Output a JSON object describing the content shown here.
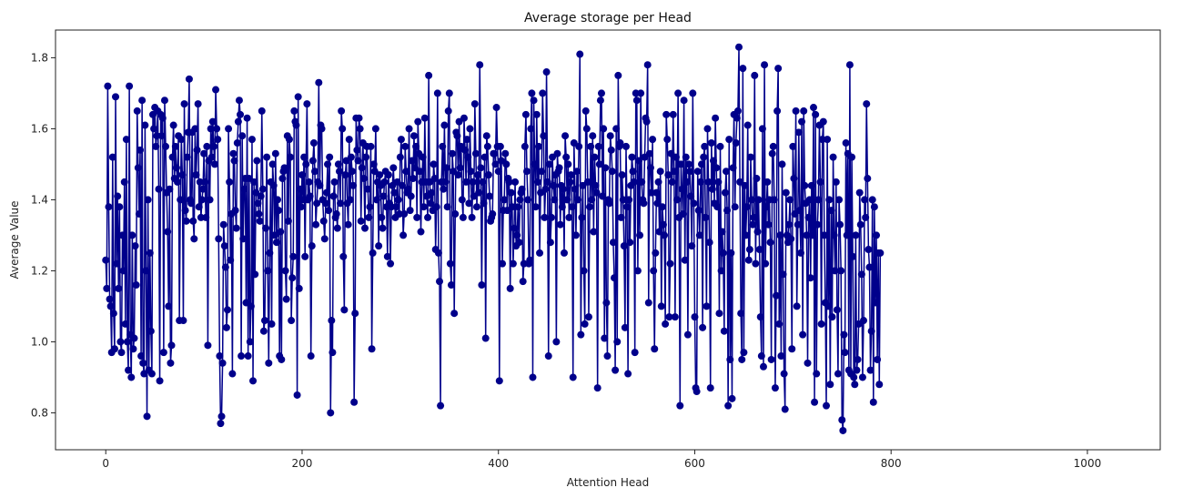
{
  "chart_data": {
    "type": "line",
    "title": "Average storage per Head",
    "xlabel": "Attention Head",
    "ylabel": "Average Value",
    "xlim": [
      -51.2,
      1074.2
    ],
    "ylim": [
      0.696,
      1.878
    ],
    "xticks": [
      0,
      200,
      400,
      600,
      800,
      1000
    ],
    "yticks": [
      0.8,
      1.0,
      1.2,
      1.4,
      1.6,
      1.8
    ],
    "grid": false,
    "legend": "none",
    "series": [
      {
        "color": "#00008b",
        "marker": "circle",
        "x_start": 0,
        "x_step": 1,
        "values": [
          1.23,
          1.15,
          1.72,
          1.38,
          1.12,
          1.1,
          0.97,
          1.52,
          1.08,
          0.98,
          1.69,
          1.22,
          1.41,
          1.15,
          1.38,
          1.0,
          0.97,
          1.3,
          1.2,
          1.45,
          1.05,
          1.57,
          1.0,
          0.92,
          1.72,
          1.02,
          0.9,
          1.3,
          0.98,
          1.01,
          1.27,
          1.16,
          1.65,
          1.49,
          1.36,
          1.54,
          0.96,
          1.68,
          0.94,
          0.91,
          1.61,
          1.2,
          0.79,
          1.4,
          0.92,
          1.25,
          1.03,
          0.91,
          1.64,
          1.6,
          1.66,
          1.55,
          1.58,
          1.65,
          1.43,
          0.89,
          1.64,
          1.58,
          1.63,
          0.97,
          1.68,
          1.55,
          1.42,
          1.31,
          1.1,
          1.43,
          0.94,
          0.99,
          1.52,
          1.61,
          1.46,
          1.55,
          1.49,
          1.45,
          1.58,
          1.06,
          1.4,
          1.57,
          1.47,
          1.06,
          1.67,
          1.37,
          1.34,
          1.52,
          1.59,
          1.74,
          1.4,
          1.39,
          1.59,
          1.34,
          1.29,
          1.6,
          1.47,
          1.54,
          1.67,
          1.38,
          1.45,
          1.35,
          1.4,
          1.43,
          1.53,
          1.45,
          1.35,
          1.55,
          0.99,
          1.51,
          1.4,
          1.6,
          1.52,
          1.62,
          1.55,
          1.5,
          1.71,
          1.6,
          1.57,
          1.29,
          0.96,
          0.77,
          0.79,
          0.94,
          1.33,
          1.27,
          1.21,
          1.04,
          1.09,
          1.6,
          1.45,
          1.23,
          1.36,
          0.91,
          1.53,
          1.51,
          1.37,
          1.32,
          1.56,
          1.62,
          1.68,
          1.64,
          0.96,
          1.58,
          1.29,
          1.43,
          1.46,
          1.11,
          1.63,
          0.96,
          1.46,
          1.0,
          1.1,
          1.57,
          0.89,
          1.45,
          1.19,
          1.42,
          1.51,
          1.39,
          1.36,
          1.34,
          1.41,
          1.65,
          1.43,
          1.03,
          1.06,
          1.32,
          1.52,
          1.2,
          0.94,
          1.25,
          1.45,
          1.05,
          1.5,
          1.44,
          1.3,
          1.53,
          1.28,
          1.4,
          1.37,
          0.96,
          1.31,
          0.95,
          1.46,
          1.48,
          1.49,
          1.2,
          1.12,
          1.58,
          1.34,
          1.57,
          1.52,
          1.06,
          1.18,
          1.24,
          1.65,
          1.62,
          1.61,
          0.85,
          1.69,
          1.15,
          1.43,
          1.38,
          1.47,
          1.4,
          1.52,
          1.24,
          1.5,
          1.67,
          1.4,
          1.45,
          1.41,
          0.96,
          1.27,
          1.51,
          1.56,
          1.48,
          1.33,
          1.39,
          1.45,
          1.73,
          1.44,
          1.61,
          1.6,
          1.4,
          1.34,
          1.29,
          1.39,
          1.42,
          1.5,
          1.37,
          1.52,
          0.8,
          1.06,
          0.97,
          1.41,
          1.45,
          1.35,
          1.36,
          1.32,
          1.5,
          1.48,
          1.39,
          1.65,
          1.6,
          1.24,
          1.09,
          1.47,
          1.51,
          1.39,
          1.33,
          1.57,
          1.4,
          1.52,
          1.48,
          1.44,
          0.83,
          1.08,
          1.63,
          1.54,
          1.51,
          1.63,
          1.6,
          1.34,
          1.49,
          1.56,
          1.46,
          1.32,
          1.52,
          1.55,
          1.43,
          1.35,
          1.38,
          1.55,
          0.98,
          1.25,
          1.5,
          1.48,
          1.6,
          1.4,
          1.45,
          1.27,
          1.47,
          1.44,
          1.35,
          1.32,
          1.41,
          1.45,
          1.48,
          1.38,
          1.24,
          1.47,
          1.39,
          1.22,
          1.38,
          1.44,
          1.49,
          1.42,
          1.35,
          1.38,
          1.45,
          1.4,
          1.36,
          1.52,
          1.57,
          1.44,
          1.3,
          1.36,
          1.55,
          1.48,
          1.42,
          1.43,
          1.6,
          1.37,
          1.41,
          1.51,
          1.46,
          1.58,
          1.49,
          1.55,
          1.35,
          1.62,
          1.53,
          1.48,
          1.31,
          1.45,
          1.52,
          1.38,
          1.63,
          1.45,
          1.41,
          1.35,
          1.75,
          1.45,
          1.39,
          1.42,
          1.37,
          1.5,
          1.46,
          1.26,
          1.38,
          1.7,
          1.25,
          1.17,
          0.82,
          1.45,
          1.55,
          1.43,
          1.61,
          1.45,
          1.49,
          1.38,
          1.65,
          1.7,
          1.22,
          1.16,
          1.53,
          1.48,
          1.08,
          1.36,
          1.59,
          1.58,
          1.47,
          1.62,
          1.49,
          1.55,
          1.4,
          1.35,
          1.63,
          1.54,
          1.45,
          1.57,
          1.52,
          1.39,
          1.6,
          1.48,
          1.35,
          1.45,
          1.41,
          1.67,
          1.53,
          1.38,
          1.47,
          1.42,
          1.78,
          1.49,
          1.16,
          1.45,
          1.39,
          1.52,
          1.01,
          1.58,
          1.55,
          1.47,
          1.41,
          1.34,
          1.35,
          1.36,
          1.53,
          1.53,
          1.5,
          1.66,
          1.55,
          1.48,
          0.89,
          1.55,
          1.51,
          1.22,
          1.37,
          1.4,
          1.53,
          1.5,
          1.37,
          1.46,
          1.45,
          1.15,
          1.42,
          1.38,
          1.22,
          1.32,
          1.45,
          1.27,
          1.3,
          1.38,
          1.28,
          1.4,
          1.42,
          1.43,
          1.17,
          1.22,
          1.55,
          1.64,
          1.48,
          1.4,
          1.22,
          1.23,
          1.6,
          1.7,
          0.9,
          1.68,
          1.5,
          1.38,
          1.64,
          1.45,
          1.55,
          1.25,
          1.42,
          1.48,
          1.7,
          1.58,
          1.35,
          1.43,
          1.76,
          1.45,
          0.96,
          1.5,
          1.28,
          1.35,
          1.52,
          1.44,
          1.4,
          1.47,
          1.0,
          1.53,
          1.48,
          1.49,
          1.33,
          1.44,
          1.38,
          1.43,
          1.25,
          1.58,
          1.52,
          1.4,
          1.5,
          1.35,
          1.45,
          1.47,
          1.38,
          0.9,
          1.56,
          1.43,
          1.3,
          1.48,
          1.4,
          1.55,
          1.81,
          1.02,
          1.35,
          1.44,
          1.2,
          1.05,
          1.65,
          1.6,
          1.45,
          1.07,
          1.38,
          1.55,
          1.4,
          1.58,
          1.31,
          1.52,
          1.44,
          1.42,
          0.87,
          1.55,
          1.5,
          1.68,
          1.7,
          1.41,
          1.6,
          1.01,
          1.49,
          1.11,
          0.96,
          1.4,
          1.39,
          1.58,
          1.54,
          1.48,
          1.28,
          1.18,
          0.92,
          1.6,
          1.0,
          1.75,
          1.55,
          1.56,
          1.35,
          1.47,
          1.4,
          1.27,
          1.04,
          1.55,
          1.38,
          0.91,
          1.4,
          1.28,
          1.44,
          1.52,
          1.48,
          1.45,
          0.97,
          1.7,
          1.68,
          1.2,
          1.51,
          1.3,
          1.7,
          1.45,
          1.4,
          1.39,
          1.52,
          1.63,
          1.62,
          1.78,
          1.11,
          1.53,
          1.49,
          1.42,
          1.57,
          1.2,
          0.98,
          1.25,
          1.42,
          1.39,
          1.45,
          1.31,
          1.48,
          1.1,
          1.38,
          1.33,
          1.3,
          1.05,
          1.64,
          1.57,
          1.47,
          1.07,
          1.22,
          1.53,
          1.45,
          1.64,
          1.48,
          1.07,
          1.52,
          1.4,
          1.7,
          1.35,
          0.82,
          1.5,
          1.43,
          1.36,
          1.68,
          1.23,
          1.52,
          1.45,
          1.02,
          1.5,
          1.48,
          1.41,
          1.27,
          1.7,
          1.39,
          1.07,
          0.87,
          0.86,
          1.48,
          1.37,
          1.3,
          1.45,
          1.5,
          1.04,
          1.52,
          1.55,
          1.35,
          1.1,
          1.6,
          1.45,
          1.28,
          0.87,
          1.56,
          1.43,
          1.51,
          1.39,
          1.63,
          1.49,
          1.38,
          1.45,
          1.08,
          1.55,
          1.2,
          1.31,
          1.25,
          1.03,
          1.42,
          1.48,
          1.37,
          0.82,
          1.57,
          0.95,
          1.25,
          0.84,
          1.49,
          1.64,
          1.38,
          1.56,
          1.63,
          1.65,
          1.83,
          1.45,
          1.08,
          0.95,
          1.77,
          0.97,
          1.44,
          1.3,
          1.38,
          1.61,
          1.23,
          1.26,
          1.52,
          1.4,
          1.33,
          1.35,
          1.75,
          1.22,
          1.46,
          1.31,
          1.4,
          1.26,
          1.07,
          0.96,
          1.6,
          0.93,
          1.78,
          1.22,
          1.38,
          1.45,
          1.33,
          1.4,
          1.28,
          0.95,
          1.53,
          1.55,
          1.4,
          0.87,
          1.13,
          1.65,
          1.77,
          1.05,
          1.3,
          0.96,
          1.5,
          1.19,
          0.91,
          0.81,
          1.42,
          1.3,
          1.28,
          1.33,
          1.4,
          1.29,
          0.98,
          1.55,
          1.46,
          1.36,
          1.65,
          1.1,
          1.33,
          1.59,
          1.37,
          1.25,
          1.62,
          1.02,
          1.65,
          1.44,
          1.39,
          1.3,
          0.94,
          1.35,
          1.4,
          1.18,
          1.44,
          1.3,
          1.66,
          0.83,
          1.64,
          0.91,
          1.33,
          1.4,
          1.61,
          1.45,
          1.05,
          1.57,
          1.62,
          1.3,
          1.11,
          0.82,
          1.57,
          1.1,
          1.4,
          0.88,
          1.37,
          1.07,
          1.52,
          1.3,
          1.2,
          1.45,
          1.09,
          0.91,
          1.4,
          1.33,
          1.2,
          0.78,
          0.75,
          1.02,
          0.97,
          1.56,
          1.3,
          1.53,
          0.92,
          1.78,
          0.91,
          1.52,
          1.24,
          0.9,
          0.88,
          1.3,
          0.92,
          0.95,
          1.05,
          1.42,
          1.33,
          1.19,
          0.9,
          1.06,
          1.4,
          1.35,
          1.67,
          1.46,
          1.26,
          1.21,
          0.92,
          1.03,
          1.4,
          0.83,
          1.38,
          1.11,
          1.3,
          0.95,
          1.25,
          0.88,
          1.25
        ]
      }
    ]
  }
}
